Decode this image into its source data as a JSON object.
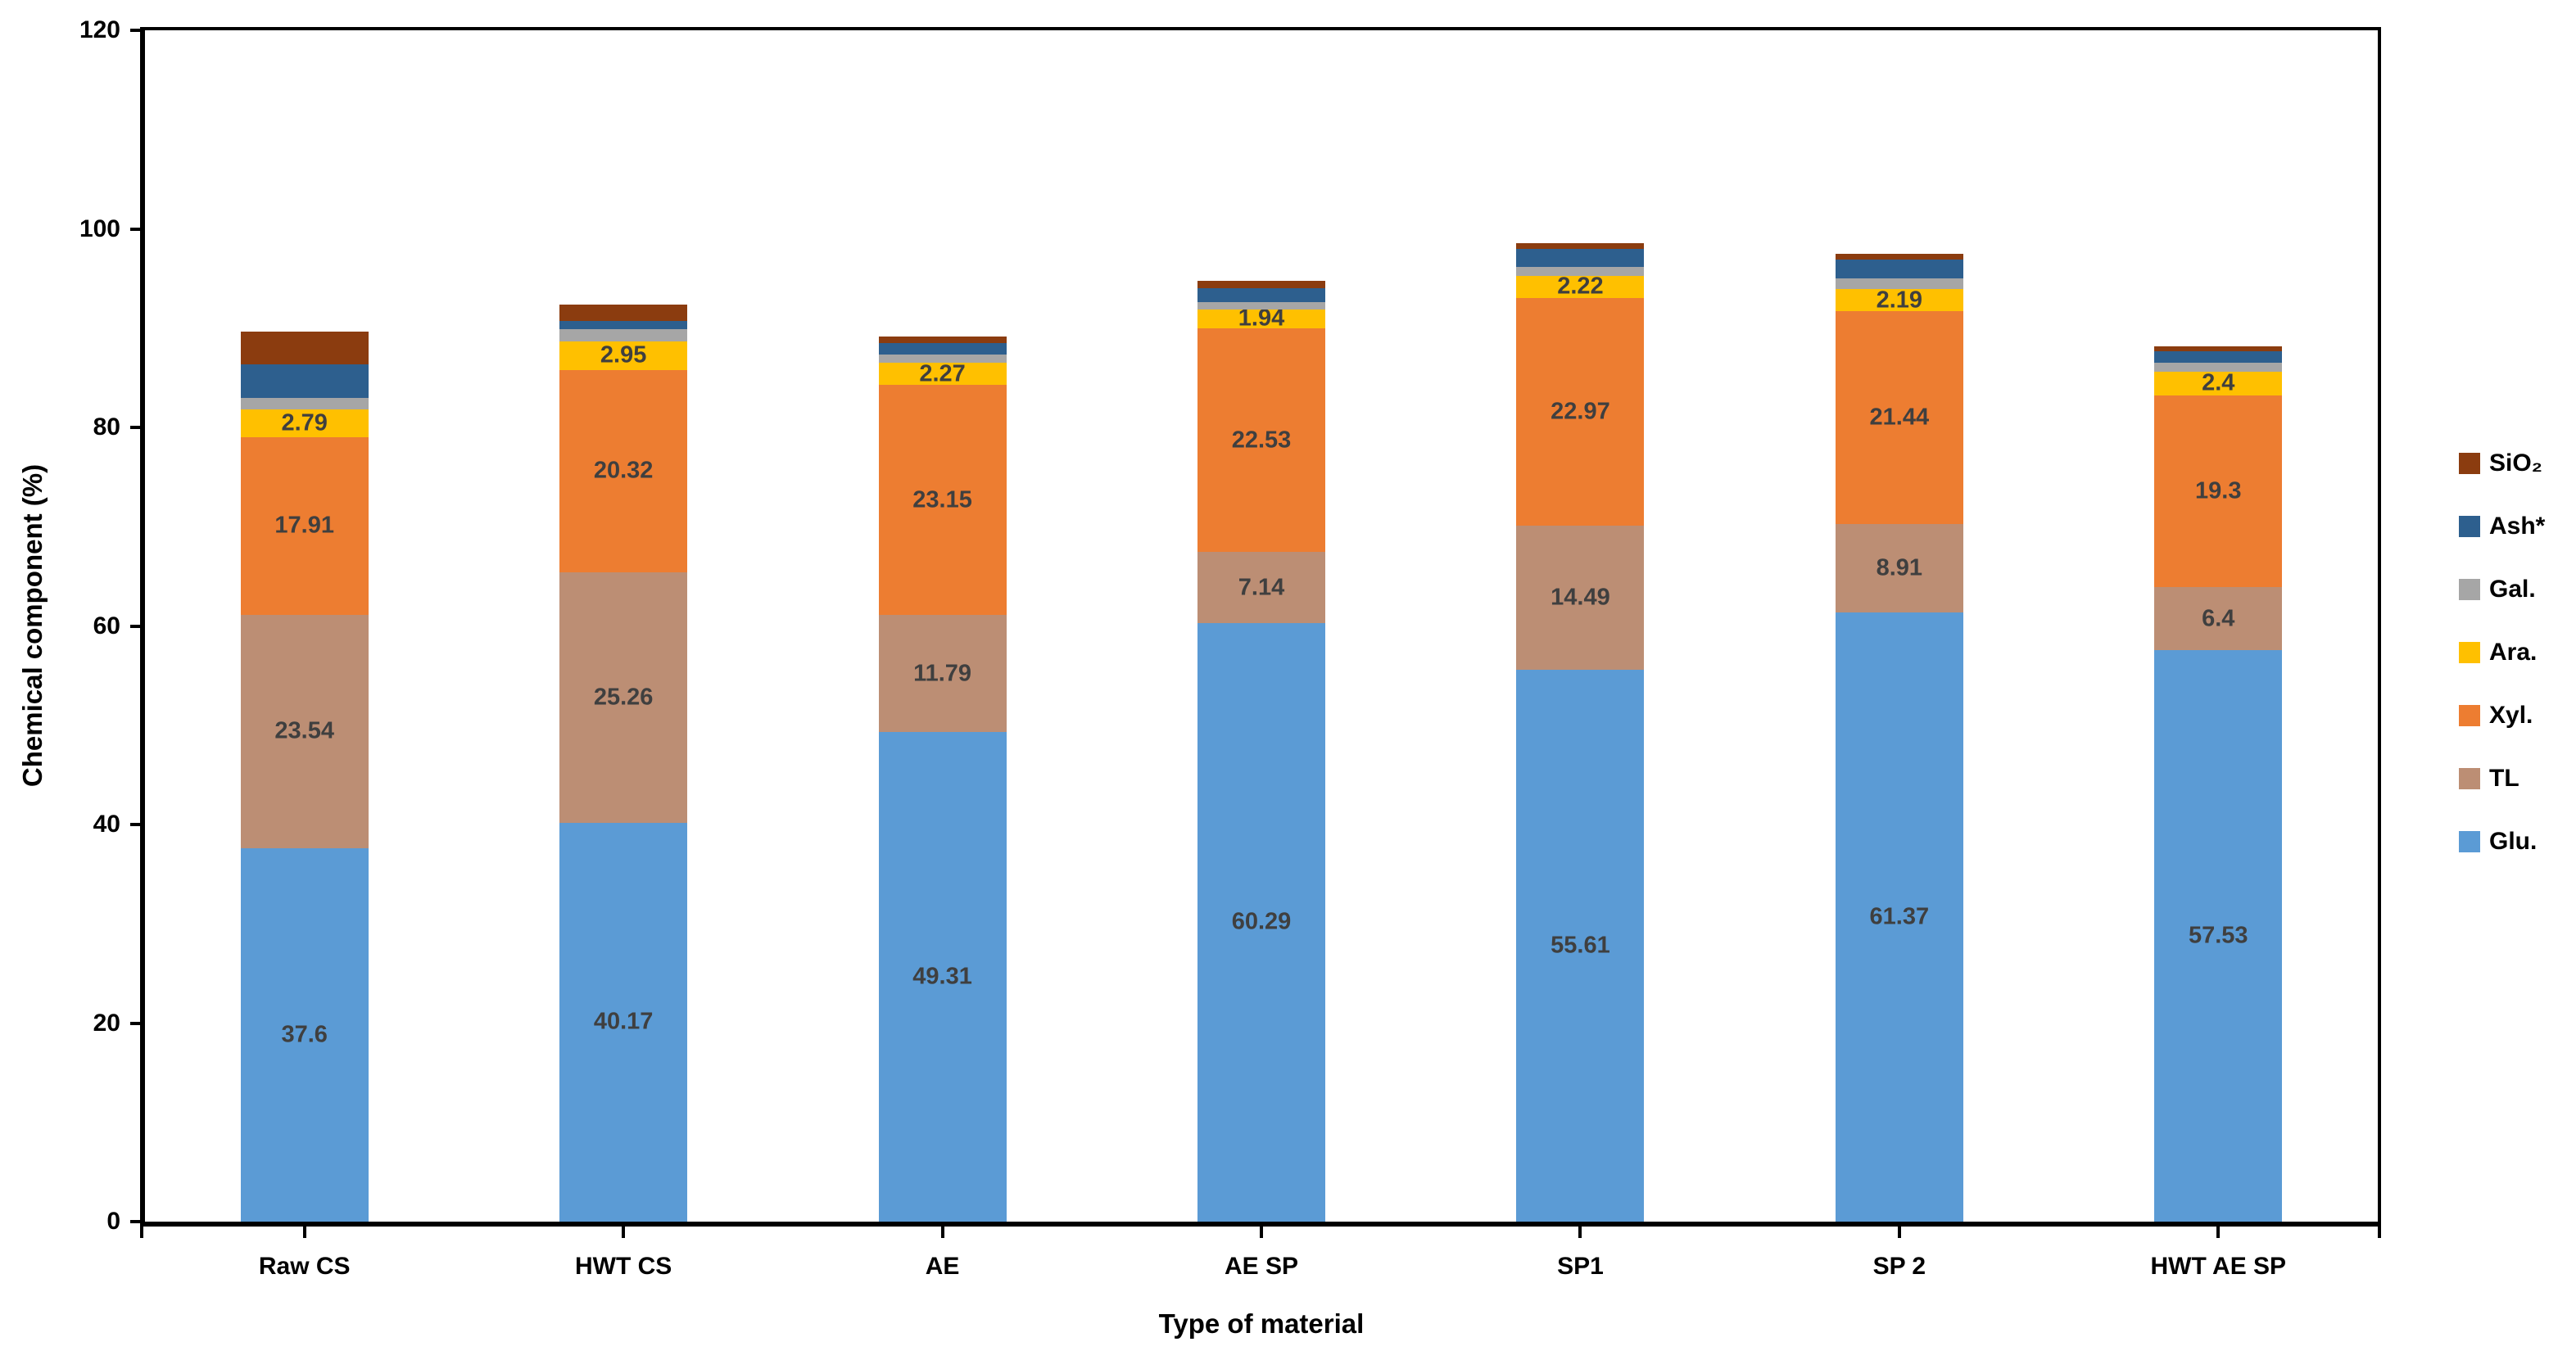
{
  "chart_data": {
    "type": "bar",
    "subtype": "stacked-vertical",
    "title": "",
    "xlabel": "Type of material",
    "ylabel": "Chemical component (%)",
    "ylim": [
      0,
      120
    ],
    "yticks": [
      0,
      20,
      40,
      60,
      80,
      100,
      120
    ],
    "grid": false,
    "legend_position": "right",
    "value_label_color": "#3F3F3F",
    "axis_color": "#000000",
    "categories": [
      "Raw CS",
      "HWT CS",
      "AE",
      "AE SP",
      "SP1",
      "SP 2",
      "HWT AE SP"
    ],
    "series": [
      {
        "name": "Glu.",
        "color": "#5B9BD5",
        "labeled": true,
        "values": [
          37.6,
          40.17,
          49.31,
          60.29,
          55.61,
          61.37,
          57.53
        ]
      },
      {
        "name": "TL",
        "color": "#BC8E74",
        "labeled": true,
        "values": [
          23.54,
          25.26,
          11.79,
          7.14,
          14.49,
          8.91,
          6.4
        ]
      },
      {
        "name": "Xyl.",
        "color": "#ED7D31",
        "labeled": true,
        "values": [
          17.91,
          20.32,
          23.15,
          22.53,
          22.97,
          21.44,
          19.3
        ]
      },
      {
        "name": "Ara.",
        "color": "#FFC000",
        "labeled": true,
        "values": [
          2.79,
          2.95,
          2.27,
          1.94,
          2.22,
          2.19,
          2.4
        ]
      },
      {
        "name": "Gal.",
        "color": "#A6A6A6",
        "labeled": false,
        "values": [
          1.1,
          1.2,
          0.8,
          0.7,
          0.9,
          1.1,
          0.9
        ]
      },
      {
        "name": "Ash*",
        "color": "#2D5F8E",
        "labeled": false,
        "values": [
          3.4,
          0.8,
          1.2,
          1.4,
          1.8,
          1.9,
          1.1
        ]
      },
      {
        "name": "SiO₂",
        "color": "#8B3C0F",
        "labeled": false,
        "values": [
          3.3,
          1.7,
          0.6,
          0.75,
          0.6,
          0.55,
          0.5
        ]
      }
    ],
    "legend_order_top_to_bottom": [
      "SiO₂",
      "Ash*",
      "Gal.",
      "Ara.",
      "Xyl.",
      "TL",
      "Glu."
    ]
  }
}
